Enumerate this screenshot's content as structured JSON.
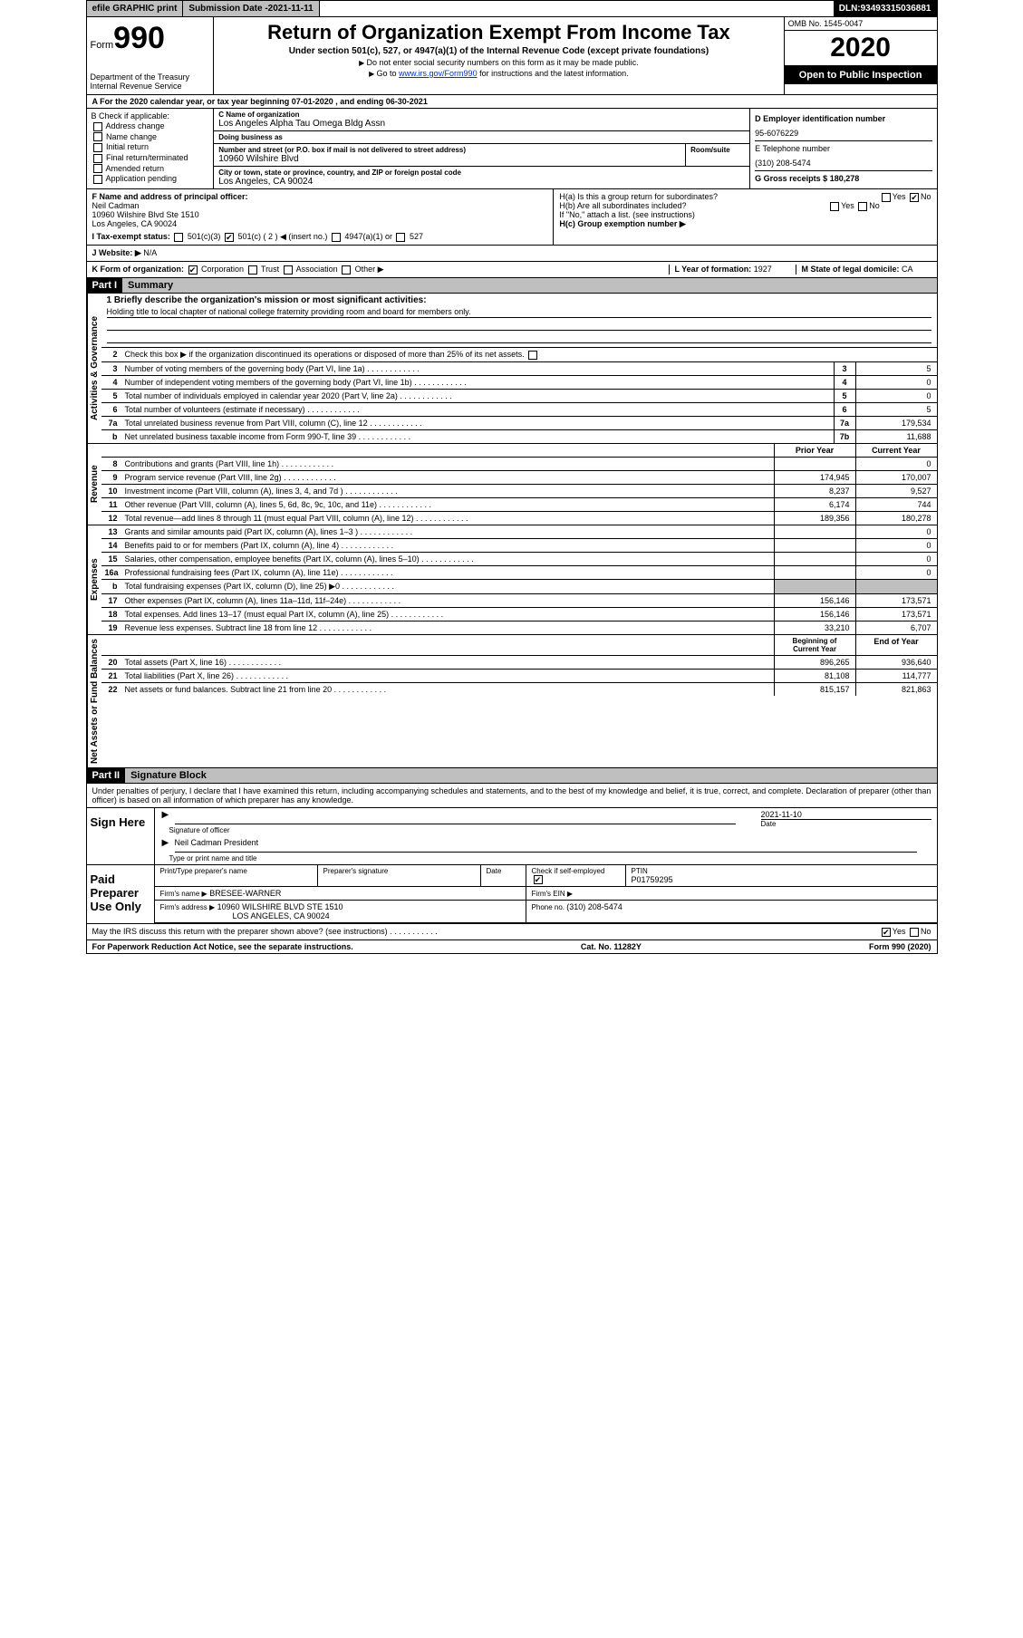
{
  "topbar": {
    "efile": "efile GRAPHIC print",
    "submission_label": "Submission Date - ",
    "submission_date": "2021-11-11",
    "dln_label": "DLN: ",
    "dln": "93493315036881"
  },
  "header": {
    "form_label": "Form",
    "form_number": "990",
    "dept1": "Department of the Treasury",
    "dept2": "Internal Revenue Service",
    "title": "Return of Organization Exempt From Income Tax",
    "subtitle": "Under section 501(c), 527, or 4947(a)(1) of the Internal Revenue Code (except private foundations)",
    "note1": "Do not enter social security numbers on this form as it may be made public.",
    "note2_prefix": "Go to ",
    "note2_link": "www.irs.gov/Form990",
    "note2_suffix": " for instructions and the latest information.",
    "omb": "OMB No. 1545-0047",
    "year": "2020",
    "inspect": "Open to Public Inspection"
  },
  "row_a": "A For the 2020 calendar year, or tax year beginning 07-01-2020     , and ending 06-30-2021",
  "box_b": {
    "label": "B Check if applicable:",
    "items": [
      "Address change",
      "Name change",
      "Initial return",
      "Final return/terminated",
      "Amended return",
      "Application pending"
    ]
  },
  "box_c": {
    "name_lbl": "C Name of organization",
    "name": "Los Angeles Alpha Tau Omega Bldg Assn",
    "dba_lbl": "Doing business as",
    "dba": "",
    "street_lbl": "Number and street (or P.O. box if mail is not delivered to street address)",
    "room_lbl": "Room/suite",
    "street": "10960 Wilshire Blvd",
    "city_lbl": "City or town, state or province, country, and ZIP or foreign postal code",
    "city": "Los Angeles, CA  90024"
  },
  "box_d": {
    "ein_lbl": "D Employer identification number",
    "ein": "95-6076229",
    "phone_lbl": "E Telephone number",
    "phone": "(310) 208-5474",
    "gross_lbl": "G Gross receipts $ ",
    "gross": "180,278"
  },
  "box_f": {
    "lbl": "F Name and address of principal officer:",
    "name": "Neil Cadman",
    "addr1": "10960 Wilshire Blvd Ste 1510",
    "addr2": "Los Angeles, CA  90024"
  },
  "box_h": {
    "a_lbl": "H(a)  Is this a group return for subordinates?",
    "a_yes": "Yes",
    "a_no": "No",
    "b_lbl": "H(b)  Are all subordinates included?",
    "b_note": "If \"No,\" attach a list. (see instructions)",
    "c_lbl": "H(c)  Group exemption number ▶"
  },
  "row_i": {
    "lbl": "I  Tax-exempt status:",
    "opt1": "501(c)(3)",
    "opt2": "501(c) ( 2 ) ◀ (insert no.)",
    "opt3": "4947(a)(1) or",
    "opt4": "527"
  },
  "row_j": {
    "lbl": "J  Website: ▶",
    "val": "N/A"
  },
  "row_k": {
    "lbl": "K Form of organization:",
    "opts": [
      "Corporation",
      "Trust",
      "Association",
      "Other ▶"
    ],
    "l_lbl": "L Year of formation: ",
    "l_val": "1927",
    "m_lbl": "M State of legal domicile: ",
    "m_val": "CA"
  },
  "part1": {
    "hdr": "Part I",
    "title": "Summary"
  },
  "summary": {
    "gov_label": "Activities & Governance",
    "rev_label": "Revenue",
    "exp_label": "Expenses",
    "net_label": "Net Assets or Fund Balances",
    "mission_lbl": "1   Briefly describe the organization's mission or most significant activities:",
    "mission": "Holding title to local chapter of national college fraternity providing room and board for members only.",
    "line2": "Check this box ▶      if the organization discontinued its operations or disposed of more than 25% of its net assets.",
    "lines_single": [
      {
        "n": "3",
        "t": "Number of voting members of the governing body (Part VI, line 1a)",
        "ref": "3",
        "v": "5"
      },
      {
        "n": "4",
        "t": "Number of independent voting members of the governing body (Part VI, line 1b)",
        "ref": "4",
        "v": "0"
      },
      {
        "n": "5",
        "t": "Total number of individuals employed in calendar year 2020 (Part V, line 2a)",
        "ref": "5",
        "v": "0"
      },
      {
        "n": "6",
        "t": "Total number of volunteers (estimate if necessary)",
        "ref": "6",
        "v": "5"
      },
      {
        "n": "7a",
        "t": "Total unrelated business revenue from Part VIII, column (C), line 12",
        "ref": "7a",
        "v": "179,534"
      },
      {
        "n": "b",
        "t": "Net unrelated business taxable income from Form 990-T, line 39",
        "ref": "7b",
        "v": "11,688"
      }
    ],
    "col_hdr1": "Prior Year",
    "col_hdr2": "Current Year",
    "rev_lines": [
      {
        "n": "8",
        "t": "Contributions and grants (Part VIII, line 1h)",
        "p": "",
        "c": "0"
      },
      {
        "n": "9",
        "t": "Program service revenue (Part VIII, line 2g)",
        "p": "174,945",
        "c": "170,007"
      },
      {
        "n": "10",
        "t": "Investment income (Part VIII, column (A), lines 3, 4, and 7d )",
        "p": "8,237",
        "c": "9,527"
      },
      {
        "n": "11",
        "t": "Other revenue (Part VIII, column (A), lines 5, 6d, 8c, 9c, 10c, and 11e)",
        "p": "6,174",
        "c": "744"
      },
      {
        "n": "12",
        "t": "Total revenue—add lines 8 through 11 (must equal Part VIII, column (A), line 12)",
        "p": "189,356",
        "c": "180,278"
      }
    ],
    "exp_lines": [
      {
        "n": "13",
        "t": "Grants and similar amounts paid (Part IX, column (A), lines 1–3 )",
        "p": "",
        "c": "0"
      },
      {
        "n": "14",
        "t": "Benefits paid to or for members (Part IX, column (A), line 4)",
        "p": "",
        "c": "0"
      },
      {
        "n": "15",
        "t": "Salaries, other compensation, employee benefits (Part IX, column (A), lines 5–10)",
        "p": "",
        "c": "0"
      },
      {
        "n": "16a",
        "t": "Professional fundraising fees (Part IX, column (A), line 11e)",
        "p": "",
        "c": "0"
      },
      {
        "n": "b",
        "t": "Total fundraising expenses (Part IX, column (D), line 25) ▶0",
        "p": "SHADE",
        "c": "SHADE"
      },
      {
        "n": "17",
        "t": "Other expenses (Part IX, column (A), lines 11a–11d, 11f–24e)",
        "p": "156,146",
        "c": "173,571"
      },
      {
        "n": "18",
        "t": "Total expenses. Add lines 13–17 (must equal Part IX, column (A), line 25)",
        "p": "156,146",
        "c": "173,571"
      },
      {
        "n": "19",
        "t": "Revenue less expenses. Subtract line 18 from line 12",
        "p": "33,210",
        "c": "6,707"
      }
    ],
    "net_hdr1": "Beginning of Current Year",
    "net_hdr2": "End of Year",
    "net_lines": [
      {
        "n": "20",
        "t": "Total assets (Part X, line 16)",
        "p": "896,265",
        "c": "936,640"
      },
      {
        "n": "21",
        "t": "Total liabilities (Part X, line 26)",
        "p": "81,108",
        "c": "114,777"
      },
      {
        "n": "22",
        "t": "Net assets or fund balances. Subtract line 21 from line 20",
        "p": "815,157",
        "c": "821,863"
      }
    ]
  },
  "part2": {
    "hdr": "Part II",
    "title": "Signature Block"
  },
  "sig": {
    "penalty": "Under penalties of perjury, I declare that I have examined this return, including accompanying schedules and statements, and to the best of my knowledge and belief, it is true, correct, and complete. Declaration of preparer (other than officer) is based on all information of which preparer has any knowledge.",
    "sign_here": "Sign Here",
    "officer_sig_lbl": "Signature of officer",
    "date_lbl": "Date",
    "sig_date": "2021-11-10",
    "officer_name": "Neil Cadman  President",
    "officer_name_lbl": "Type or print name and title",
    "paid_prep": "Paid Preparer Use Only",
    "prep_name_lbl": "Print/Type preparer's name",
    "prep_sig_lbl": "Preparer's signature",
    "prep_date_lbl": "Date",
    "self_emp_lbl": "Check        if self-employed",
    "ptin_lbl": "PTIN",
    "ptin": "P01759295",
    "firm_name_lbl": "Firm's name     ▶",
    "firm_name": "BRESEE-WARNER",
    "firm_ein_lbl": "Firm's EIN ▶",
    "firm_addr_lbl": "Firm's address ▶",
    "firm_addr1": "10960 WILSHIRE BLVD STE 1510",
    "firm_addr2": "LOS ANGELES, CA  90024",
    "phone_lbl": "Phone no. ",
    "phone": "(310) 208-5474",
    "discuss": "May the IRS discuss this return with the preparer shown above? (see instructions)",
    "yes": "Yes",
    "no": "No"
  },
  "footer": {
    "left": "For Paperwork Reduction Act Notice, see the separate instructions.",
    "mid": "Cat. No. 11282Y",
    "right": "Form 990 (2020)"
  }
}
